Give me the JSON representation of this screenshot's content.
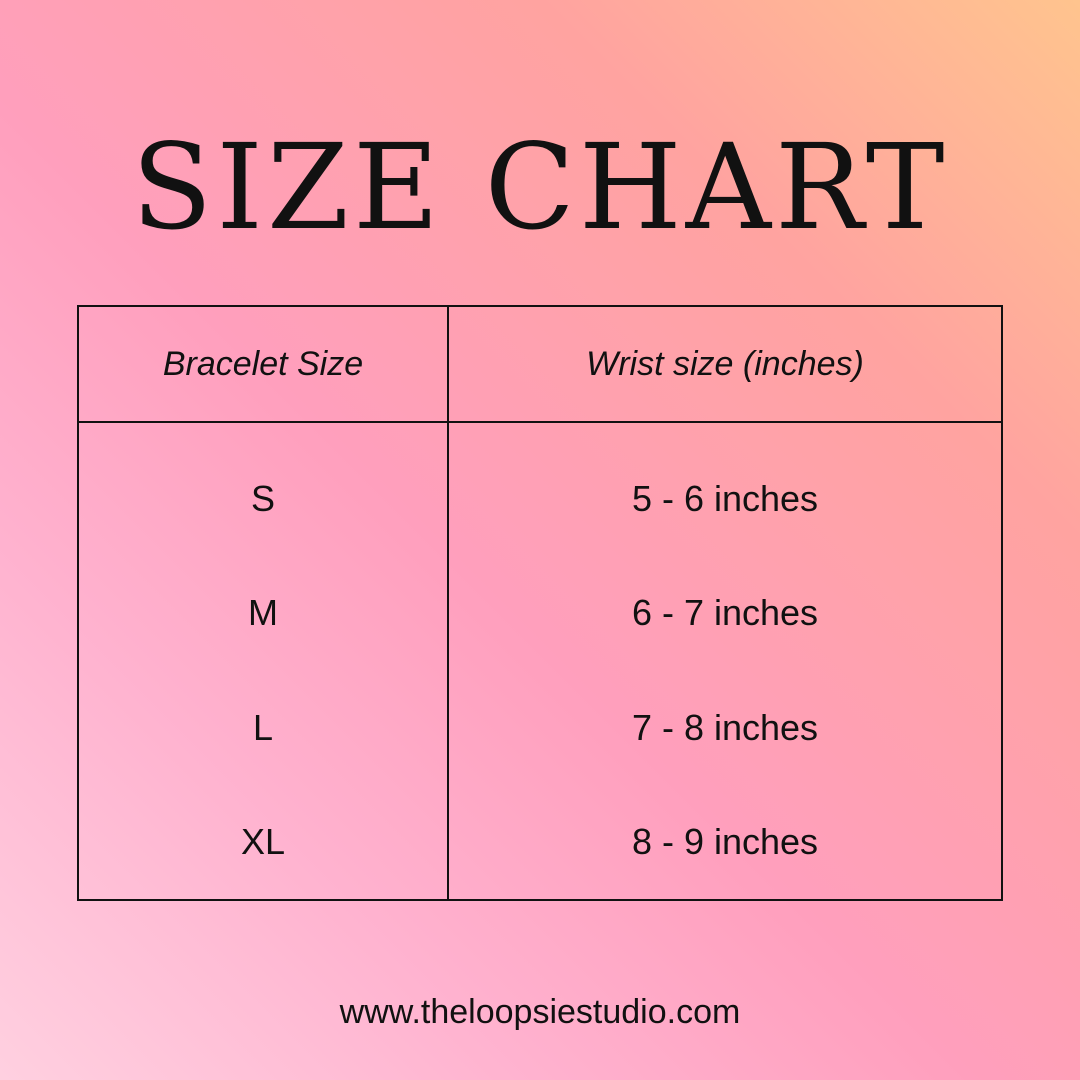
{
  "title": "SIZE CHART",
  "table": {
    "headers": [
      "Bracelet Size",
      "Wrist size (inches)"
    ],
    "rows": [
      [
        "S",
        "5 - 6 inches"
      ],
      [
        "M",
        "6 - 7 inches"
      ],
      [
        "L",
        "7 - 8 inches"
      ],
      [
        "XL",
        "8 - 9 inches"
      ]
    ]
  },
  "footer": {
    "url": "www.theloopsiestudio.com"
  },
  "colors": {
    "gradient_start": "#ffd0e0",
    "gradient_mid": "#ff9fbd",
    "gradient_end": "#ffc48e",
    "text": "#111111"
  }
}
